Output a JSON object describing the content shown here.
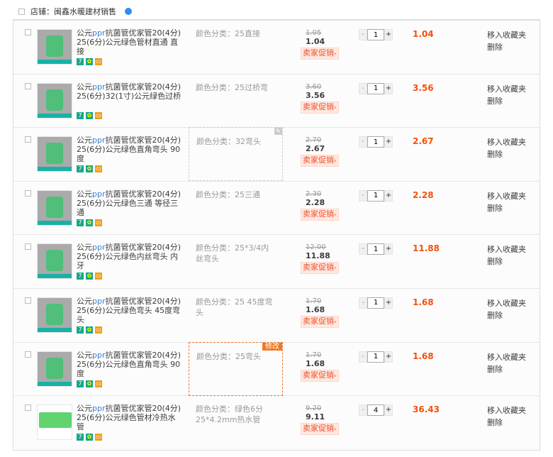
{
  "shop": {
    "label": "店铺：闽鑫水暖建材销售",
    "wangwang_icon": "chat-bubble-icon",
    "accent": "#f5500a"
  },
  "labels": {
    "spec_prefix": "颜色分类：",
    "promo": "卖家促销",
    "move_fav": "移入收藏夹",
    "delete": "删除",
    "modify": "修改",
    "minus": "-",
    "plus": "+"
  },
  "items": [
    {
      "title_a": "公元",
      "title_ppr": "ppr",
      "title_b": "抗菌管优家管20(4分)",
      "title_2": "25(6分)公元绿色管材直通 直接",
      "spec": "25直接",
      "old": "1.05",
      "now": "1.04",
      "qty": "1",
      "sum": "1.04",
      "img": "gray"
    },
    {
      "title_a": "公元",
      "title_ppr": "ppr",
      "title_b": "抗菌管优家管20(4分)",
      "title_2": "25(6分)32(1寸)公元绿色过桥",
      "spec": "25过桥弯",
      "old": "3.60",
      "now": "3.56",
      "qty": "1",
      "sum": "3.56",
      "img": "gray"
    },
    {
      "title_a": "公元",
      "title_ppr": "ppr",
      "title_b": "抗菌管优家管20(4分)",
      "title_2": "25(6分)公元绿色直角弯头 90度",
      "spec": "32弯头",
      "old": "2.70",
      "now": "2.67",
      "qty": "1",
      "sum": "2.67",
      "img": "gray",
      "state": "edit"
    },
    {
      "title_a": "公元",
      "title_ppr": "ppr",
      "title_b": "抗菌管优家管20(4分)",
      "title_2": "25(6分)公元绿色三通 等径三通",
      "spec": "25三通",
      "old": "2.30",
      "now": "2.28",
      "qty": "1",
      "sum": "2.28",
      "img": "gray"
    },
    {
      "title_a": "公元",
      "title_ppr": "ppr",
      "title_b": "抗菌管优家管20(4分)",
      "title_2": "25(6分)公元绿色内丝弯头 内牙",
      "spec": "25*3/4内丝弯头",
      "old": "12.00",
      "now": "11.88",
      "qty": "1",
      "sum": "11.88",
      "img": "gray"
    },
    {
      "title_a": "公元",
      "title_ppr": "ppr",
      "title_b": "抗菌管优家管20(4分)",
      "title_2": "25(6分)公元绿色弯头 45度弯头",
      "spec": "25 45度弯头",
      "old": "1.70",
      "now": "1.68",
      "qty": "1",
      "sum": "1.68",
      "img": "gray"
    },
    {
      "title_a": "公元",
      "title_ppr": "ppr",
      "title_b": "抗菌管优家管20(4分)",
      "title_2": "25(6分)公元绿色直角弯头 90度",
      "spec": "25弯头",
      "old": "1.70",
      "now": "1.68",
      "qty": "1",
      "sum": "1.68",
      "img": "gray",
      "state": "hover"
    },
    {
      "title_a": "公元",
      "title_ppr": "ppr",
      "title_b": "抗菌管优家管20(4分)",
      "title_2": "25(6分)公元绿色管材冷热水管",
      "spec": "绿色6分 25*4.2mm热水管",
      "old": "9.20",
      "now": "9.11",
      "qty": "4",
      "sum": "36.43",
      "img": "green"
    }
  ]
}
